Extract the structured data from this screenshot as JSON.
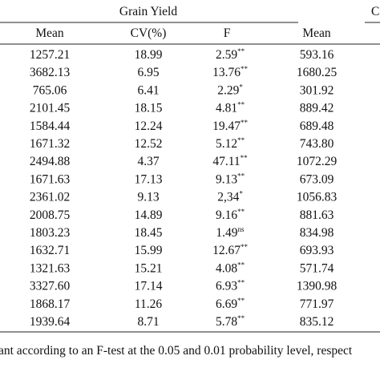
{
  "table": {
    "group_headers": [
      "Grain Yield",
      "C"
    ],
    "columns": [
      "Mean",
      "CV(%)",
      "F",
      "Mean"
    ],
    "rows": [
      [
        "1257.21",
        "18.99",
        "2.59",
        "**",
        "593.16"
      ],
      [
        "3682.13",
        "6.95",
        "13.76",
        "**",
        "1680.25"
      ],
      [
        "765.06",
        "6.41",
        "2.29",
        "*",
        "301.92"
      ],
      [
        "2101.45",
        "18.15",
        "4.81",
        "**",
        "889.42"
      ],
      [
        "1584.44",
        "12.24",
        "19.47",
        "**",
        "689.48"
      ],
      [
        "1671.32",
        "12.52",
        "5.12",
        "**",
        "743.80"
      ],
      [
        "2494.88",
        "4.37",
        "47.11",
        "**",
        "1072.29"
      ],
      [
        "1671.63",
        "17.13",
        "9.13",
        "**",
        "673.09"
      ],
      [
        "2361.02",
        "9.13",
        "2,34",
        "*",
        "1056.83"
      ],
      [
        "2008.75",
        "14.89",
        "9.16",
        "**",
        "881.63"
      ],
      [
        "1803.23",
        "18.45",
        "1.49",
        "ns",
        "834.98"
      ],
      [
        "1632.71",
        "15.99",
        "12.67",
        "**",
        "693.93"
      ],
      [
        "1321.63",
        "15.21",
        "4.08",
        "**",
        "571.74"
      ],
      [
        "3327.60",
        "17.14",
        "6.93",
        "**",
        "1390.98"
      ],
      [
        "1868.17",
        "11.26",
        "6.69",
        "**",
        "771.97"
      ],
      [
        "1939.64",
        "8.71",
        "5.78",
        "**",
        "835.12"
      ]
    ],
    "footnote": "ant according to an F-test at the 0.05 and 0.01 probability level, respect"
  }
}
